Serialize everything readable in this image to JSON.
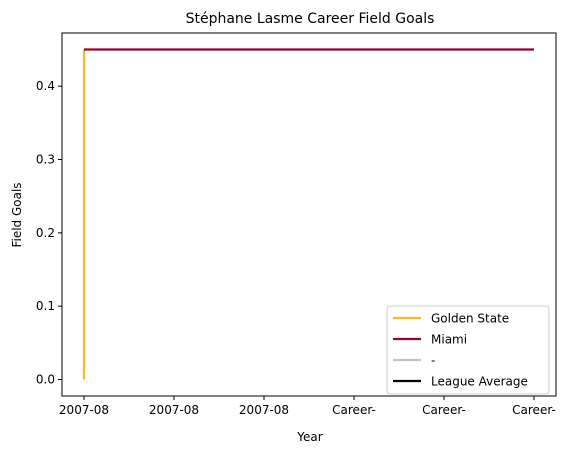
{
  "chart_data": {
    "type": "line",
    "title": "Stéphane Lasme Career Field Goals",
    "xlabel": "Year",
    "ylabel": "Field Goals",
    "x_tick_labels": [
      "2007-08",
      "2007-08",
      "2007-08",
      "Career-",
      "Career-",
      "Career-"
    ],
    "ylim": [
      -0.0225,
      0.4725
    ],
    "y_ticks": [
      0.0,
      0.1,
      0.2,
      0.3,
      0.4
    ],
    "y_tick_labels": [
      "0.0",
      "0.1",
      "0.2",
      "0.3",
      "0.4"
    ],
    "grid": false,
    "legend_position": "lower-right",
    "series": [
      {
        "name": "Golden State",
        "color": "#FDB927",
        "points": [
          [
            0,
            0.0
          ],
          [
            0,
            0.45
          ]
        ]
      },
      {
        "name": "Miami",
        "color": "#98002E",
        "points": [
          [
            0,
            0.45
          ],
          [
            5,
            0.45
          ]
        ]
      },
      {
        "name": "-",
        "color": "#C4C4C4",
        "points": []
      },
      {
        "name": "League Average",
        "color": "#000000",
        "points": []
      }
    ]
  }
}
